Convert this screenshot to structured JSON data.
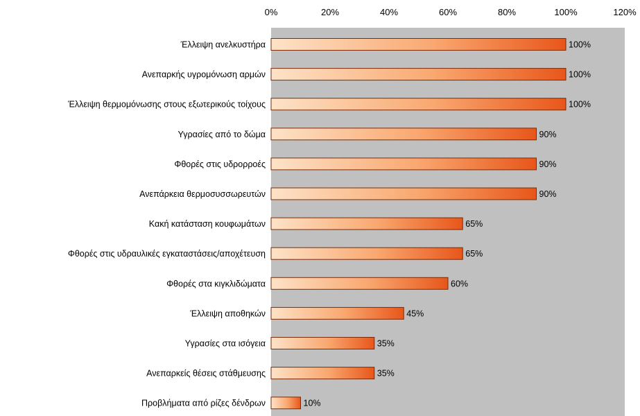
{
  "chart_data": {
    "type": "bar",
    "orientation": "horizontal",
    "categories": [
      "Έλλειψη ανελκυστήρα",
      "Ανεπαρκής υγρομόνωση αρμών",
      "Έλλειψη θερμομόνωσης στους εξωτερικούς τοίχους",
      "Υγρασίες από το δώμα",
      "Φθορές στις υδρορροές",
      "Ανεπάρκεια θερμοσυσσωρευτών",
      "Κακή κατάσταση κουφωμάτων",
      "Φθορές στις υδραυλικές εγκαταστάσεις/αποχέτευση",
      "Φθορές στα κιγκλιδώματα",
      "Έλλειψη αποθηκών",
      "Υγρασίες στα ισόγεια",
      "Ανεπαρκείς θέσεις στάθμευσης",
      "Προβλήματα από ρίζες δένδρων"
    ],
    "values": [
      100,
      100,
      100,
      90,
      90,
      90,
      65,
      65,
      60,
      45,
      35,
      35,
      10
    ],
    "value_labels": [
      "100%",
      "100%",
      "100%",
      "90%",
      "90%",
      "90%",
      "65%",
      "65%",
      "60%",
      "45%",
      "35%",
      "35%",
      "10%"
    ],
    "xlim": [
      0,
      120
    ],
    "x_ticks": [
      0,
      20,
      40,
      60,
      80,
      100,
      120
    ],
    "x_tick_labels": [
      "0%",
      "20%",
      "40%",
      "60%",
      "80%",
      "100%",
      "120%"
    ],
    "x_axis_position": "top",
    "title": "",
    "xlabel": "",
    "ylabel": "",
    "grid": false,
    "legend": "none",
    "colors": {
      "plot_background": "#c0c0c0",
      "bar_light": "#fde3c8",
      "bar_mid": "#f9a870",
      "bar_dark": "#e8561a",
      "bar_outline": "#7a2a08"
    }
  }
}
